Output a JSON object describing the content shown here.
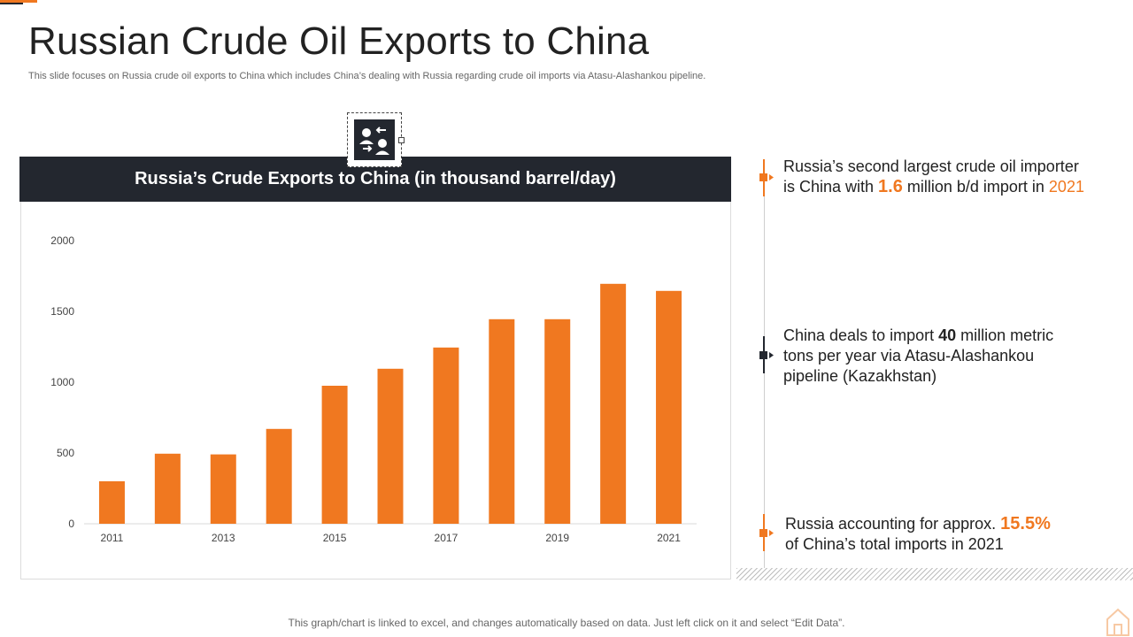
{
  "slide": {
    "title": "Russian Crude Oil Exports to China",
    "subtitle": "This slide focuses on Russia crude oil exports to China which includes China’s dealing with Russia regarding crude oil imports via Atasu-Alashankou pipeline.",
    "footnote": "This graph/chart is linked to excel, and changes automatically based on data. Just left click on it and select “Edit Data”."
  },
  "chart_header": "Russia’s Crude Exports to China (in thousand barrel/day)",
  "chart_data": {
    "type": "bar",
    "categories": [
      "2011",
      "2012",
      "2013",
      "2014",
      "2015",
      "2016",
      "2017",
      "2018",
      "2019",
      "2020",
      "2021"
    ],
    "tick_labels": [
      "2011",
      "",
      "2013",
      "",
      "2015",
      "",
      "2017",
      "",
      "2019",
      "",
      "2021"
    ],
    "values": [
      300,
      495,
      490,
      670,
      975,
      1095,
      1245,
      1445,
      1445,
      1695,
      1645
    ],
    "ylim": [
      0,
      2000
    ],
    "yticks": [
      0,
      500,
      1000,
      1500,
      2000
    ],
    "color": "#f07820",
    "grid": false
  },
  "points": [
    {
      "line1": "Russia’s second largest crude oil importer",
      "pre": "is China with ",
      "hl1": "1.6",
      "mid": " million b/d import in ",
      "hl2": "2021"
    },
    {
      "pre": "China deals to import ",
      "bold": "40",
      "post": " million metric",
      "line2": "tons per year via Atasu-Alashankou",
      "line3": "pipeline (Kazakhstan)"
    },
    {
      "pre": "Russia accounting for approx. ",
      "hl": "15.5%",
      "line2": "of China’s total imports in 2021"
    }
  ],
  "colors": {
    "accent": "#f07820",
    "dark": "#23272f"
  },
  "icons": {
    "header_icon": "people-exchange-icon",
    "corner_icon": "home-icon"
  }
}
